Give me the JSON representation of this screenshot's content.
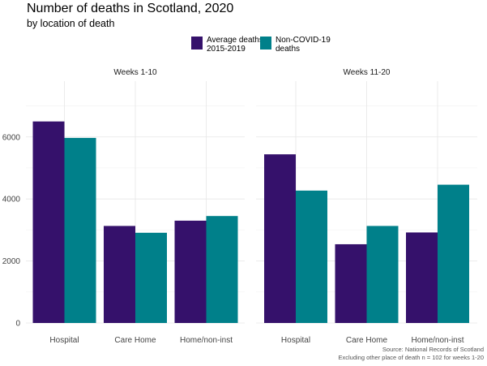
{
  "chart_data": {
    "type": "bar",
    "title": "Number of deaths in Scotland, 2020",
    "subtitle": "by location of death",
    "caption_lines": [
      "Source: National Records of Scotland",
      "Excluding other place of death n = 102 for weeks 1-20"
    ],
    "legend": {
      "placement": "top",
      "entries": [
        {
          "label_lines": [
            "Average deaths",
            "2015-2019"
          ],
          "color": "#35116b"
        },
        {
          "label_lines": [
            "Non-COVID-19",
            "deaths"
          ],
          "color": "#00808a"
        }
      ]
    },
    "y_ticks": [
      0,
      2000,
      4000,
      6000
    ],
    "ylim": [
      0,
      7800
    ],
    "grid": true,
    "categories": [
      "Hospital",
      "Care Home",
      "Home/non-inst"
    ],
    "facets": [
      {
        "label": "Weeks 1-10",
        "series": [
          {
            "name": "Average deaths 2015-2019",
            "color": "#35116b",
            "values": [
              6500,
              3130,
              3300
            ]
          },
          {
            "name": "Non-COVID-19 deaths",
            "color": "#00808a",
            "values": [
              5970,
              2910,
              3450
            ]
          }
        ]
      },
      {
        "label": "Weeks 11-20",
        "series": [
          {
            "name": "Average deaths 2015-2019",
            "color": "#35116b",
            "values": [
              5440,
              2540,
              2920
            ]
          },
          {
            "name": "Non-COVID-19 deaths",
            "color": "#00808a",
            "values": [
              4270,
              3130,
              4460
            ]
          }
        ]
      }
    ]
  }
}
